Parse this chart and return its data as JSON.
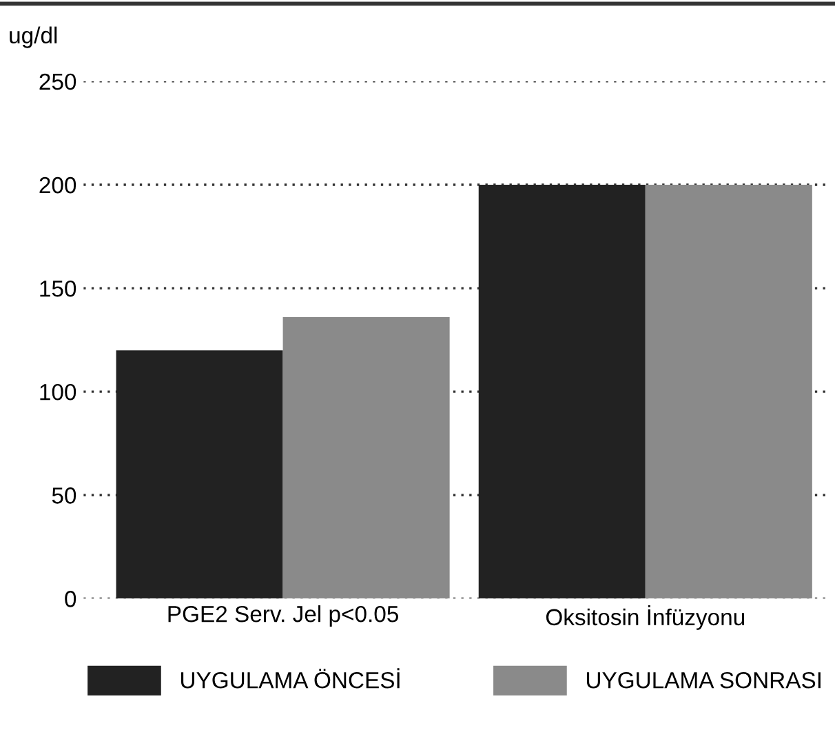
{
  "chart_data": {
    "type": "bar",
    "ylabel": "ug/dl",
    "categories": [
      "PGE2 Serv. Jel p<0.05",
      "Oksitosin İnfüzyonu"
    ],
    "series": [
      {
        "name": "UYGULAMA ÖNCESİ",
        "color": "#222222",
        "values": [
          120,
          200
        ]
      },
      {
        "name": "UYGULAMA SONRASI",
        "color": "#8a8a8a",
        "values": [
          136,
          200
        ]
      }
    ],
    "ylim": [
      0,
      250
    ],
    "yticks": [
      0,
      50,
      100,
      150,
      200,
      250
    ],
    "grid": "y",
    "legend": "bottom"
  }
}
